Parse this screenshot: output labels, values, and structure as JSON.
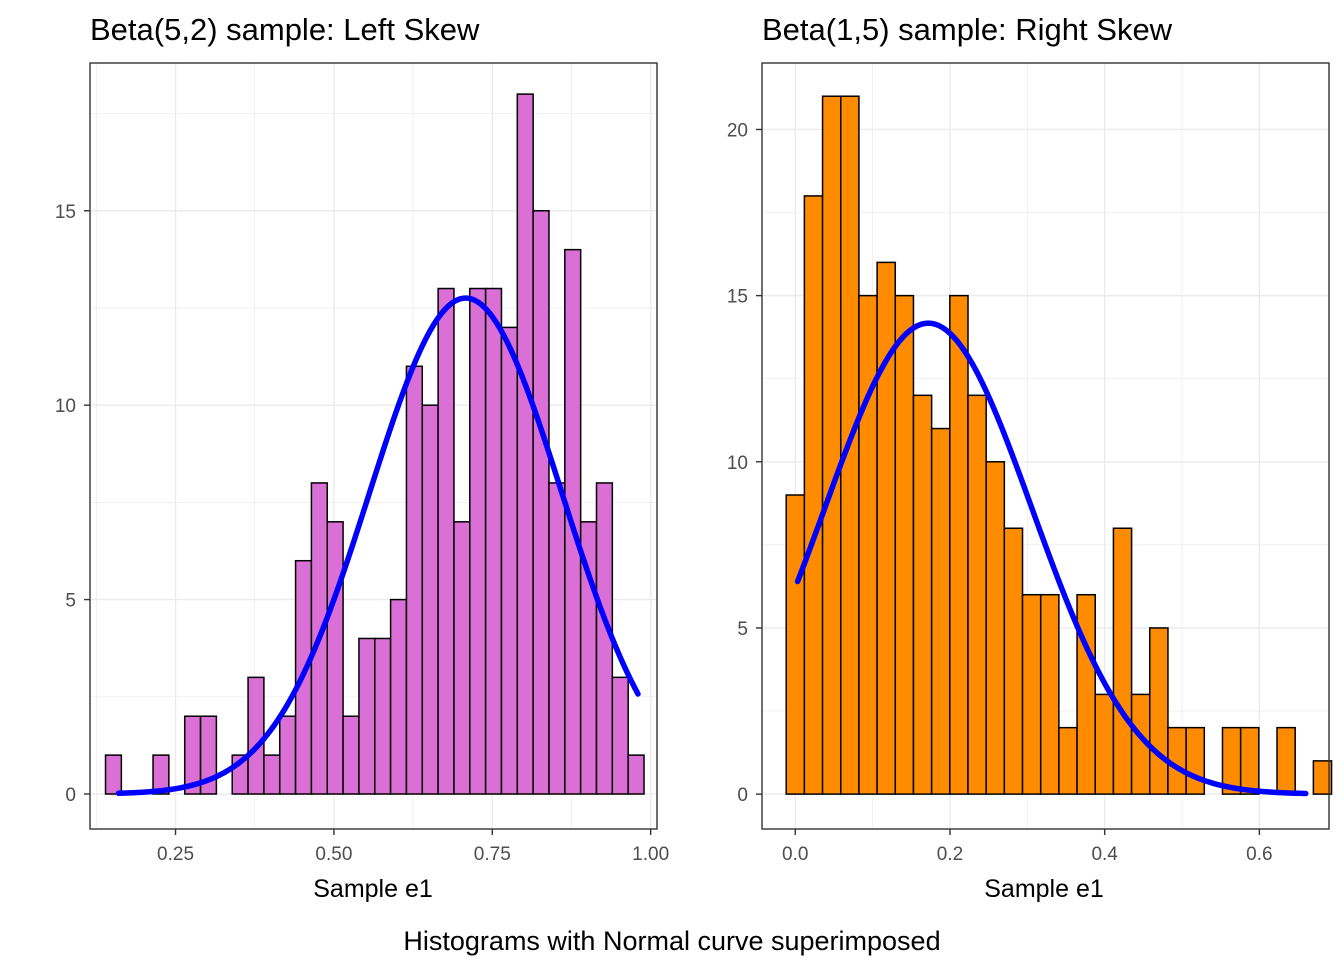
{
  "caption": "Histograms with Normal curve superimposed",
  "colors": {
    "left_fill": "#DA70D6",
    "right_fill": "#FF8C00",
    "bar_outline": "#000000",
    "curve": "#0000FF",
    "grid": "#EBEBEB",
    "panel_border": "#333333"
  },
  "chart_data": [
    {
      "type": "bar",
      "title": "Beta(5,2) sample: Left Skew",
      "xlabel": "Sample e1",
      "ylabel": "",
      "xlim": [
        0.115,
        1.01
      ],
      "ylim": [
        -0.9,
        18.8
      ],
      "x_ticks": [
        0.25,
        0.5,
        0.75,
        1.0
      ],
      "x_tick_labels": [
        "0.25",
        "0.50",
        "0.75",
        "1.00"
      ],
      "y_ticks": [
        0,
        5,
        10,
        15
      ],
      "y_tick_labels": [
        "0",
        "5",
        "10",
        "15"
      ],
      "grid": true,
      "bin_start": 0.1395,
      "bin_width": 0.025,
      "values": [
        1,
        0,
        0,
        1,
        0,
        2,
        2,
        0,
        1,
        3,
        1,
        2,
        6,
        8,
        7,
        2,
        4,
        4,
        5,
        11,
        10,
        13,
        7,
        13,
        13,
        12,
        18,
        15,
        8,
        14,
        7,
        8,
        3,
        1
      ],
      "normal_curve": {
        "mean": 0.708,
        "sd": 0.152,
        "from": 0.16,
        "to": 0.98,
        "scale": 4.86
      }
    },
    {
      "type": "bar",
      "title": "Beta(1,5) sample: Right Skew",
      "xlabel": "Sample e1",
      "ylabel": "",
      "xlim": [
        -0.043,
        0.69
      ],
      "ylim": [
        -1.05,
        22.0
      ],
      "x_ticks": [
        0.0,
        0.2,
        0.4,
        0.6
      ],
      "x_tick_labels": [
        "0.0",
        "0.2",
        "0.4",
        "0.6"
      ],
      "y_ticks": [
        0,
        5,
        10,
        15,
        20
      ],
      "y_tick_labels": [
        "0",
        "5",
        "10",
        "15",
        "20"
      ],
      "grid": true,
      "bin_start": -0.0117,
      "bin_width": 0.0235,
      "values": [
        9,
        18,
        21,
        21,
        15,
        16,
        15,
        12,
        11,
        15,
        12,
        10,
        8,
        6,
        6,
        2,
        6,
        3,
        8,
        3,
        5,
        2,
        2,
        0,
        2,
        2,
        0,
        2,
        0,
        1
      ],
      "normal_curve": {
        "mean": 0.172,
        "sd": 0.134,
        "from": 0.003,
        "to": 0.66,
        "scale": 4.76
      }
    }
  ]
}
